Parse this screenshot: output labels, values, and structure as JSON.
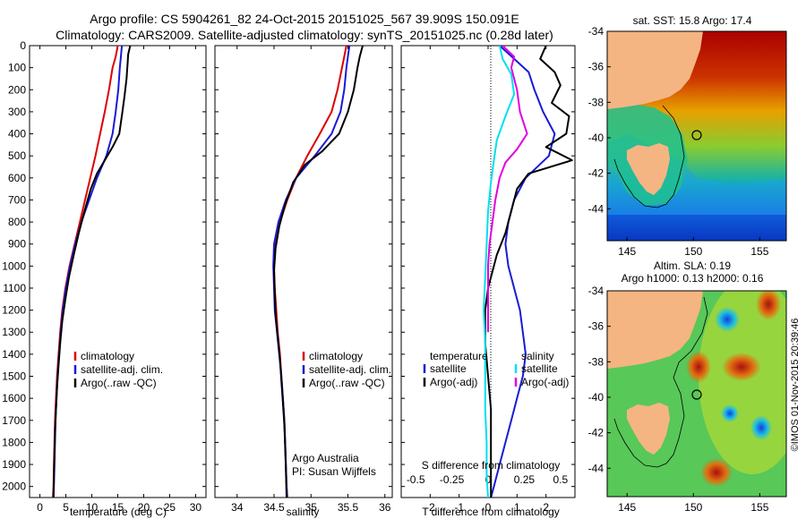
{
  "title_line1": "Argo profile: CS 5904261_82 24-Oct-2015 20151025_567 39.909S 150.091E",
  "title_line2": "Climatology: CARS2009. Satellite-adjusted climatology: synTS_20151025.nc (0.28d later)",
  "map1_title": "sat. SST: 15.8 Argo: 17.4",
  "map2_title1": "Altim. SLA: 0.19",
  "map2_title2": "Argo h1000: 0.13 h2000: 0.16",
  "credit": "©IMOS 01-Nov-2015 20:39:46",
  "agency": "Argo Australia",
  "pi": "PI: Susan Wijffels",
  "colors": {
    "climatology": "#dd0000",
    "satellite": "#1a1ad6",
    "argo": "#000000",
    "salinity_argo": "#e000e0",
    "salinity_sat": "#00e0ee"
  },
  "chart_data": [
    {
      "type": "line",
      "xlabel": "temperature (deg C)",
      "ylabel": "",
      "xlim": [
        -2,
        32
      ],
      "ylim": [
        2050,
        0
      ],
      "xticks": [
        "0",
        "5",
        "10",
        "15",
        "20",
        "25",
        "30"
      ],
      "yticks": [
        "0",
        "100",
        "200",
        "300",
        "400",
        "500",
        "600",
        "700",
        "800",
        "900",
        "1000",
        "1100",
        "1200",
        "1300",
        "1400",
        "1500",
        "1600",
        "1700",
        "1800",
        "1900",
        "2000"
      ],
      "legend": [
        "climatology",
        "satellite-adj. clim.",
        "Argo(..raw -QC)"
      ],
      "series": [
        {
          "name": "climatology",
          "color": "climatology",
          "points": [
            [
              15.0,
              0
            ],
            [
              14.6,
              50
            ],
            [
              14.0,
              100
            ],
            [
              13.3,
              200
            ],
            [
              12.5,
              300
            ],
            [
              11.6,
              400
            ],
            [
              10.7,
              500
            ],
            [
              9.7,
              600
            ],
            [
              8.7,
              700
            ],
            [
              7.7,
              800
            ],
            [
              6.7,
              900
            ],
            [
              5.7,
              1000
            ],
            [
              4.9,
              1100
            ],
            [
              4.3,
              1200
            ],
            [
              3.9,
              1300
            ],
            [
              3.6,
              1400
            ],
            [
              3.3,
              1500
            ],
            [
              3.1,
              1600
            ],
            [
              2.9,
              1700
            ],
            [
              2.8,
              1800
            ],
            [
              2.7,
              1900
            ],
            [
              2.6,
              2000
            ],
            [
              2.5,
              2050
            ]
          ]
        },
        {
          "name": "satellite-adj. clim.",
          "color": "satellite",
          "points": [
            [
              15.8,
              0
            ],
            [
              15.6,
              50
            ],
            [
              15.4,
              100
            ],
            [
              15.1,
              200
            ],
            [
              14.6,
              300
            ],
            [
              14.0,
              400
            ],
            [
              12.8,
              500
            ],
            [
              11.0,
              600
            ],
            [
              9.5,
              700
            ],
            [
              8.0,
              800
            ],
            [
              6.8,
              900
            ],
            [
              5.8,
              1000
            ],
            [
              5.0,
              1100
            ],
            [
              4.4,
              1200
            ],
            [
              4.0,
              1300
            ],
            [
              3.7,
              1400
            ],
            [
              3.4,
              1500
            ],
            [
              3.2,
              1600
            ],
            [
              3.0,
              1700
            ],
            [
              2.9,
              1800
            ],
            [
              2.8,
              1900
            ],
            [
              2.7,
              2000
            ],
            [
              2.6,
              2050
            ]
          ]
        },
        {
          "name": "Argo(..raw -QC)",
          "color": "argo",
          "points": [
            [
              17.4,
              0
            ],
            [
              17.0,
              40
            ],
            [
              16.9,
              80
            ],
            [
              16.7,
              150
            ],
            [
              16.3,
              230
            ],
            [
              15.9,
              300
            ],
            [
              15.3,
              400
            ],
            [
              14.0,
              460
            ],
            [
              12.5,
              520
            ],
            [
              11.0,
              580
            ],
            [
              9.8,
              650
            ],
            [
              8.6,
              750
            ],
            [
              7.5,
              850
            ],
            [
              6.5,
              950
            ],
            [
              5.6,
              1050
            ],
            [
              4.9,
              1150
            ],
            [
              4.3,
              1250
            ],
            [
              3.9,
              1350
            ],
            [
              3.6,
              1450
            ],
            [
              3.3,
              1550
            ],
            [
              3.1,
              1650
            ],
            [
              2.9,
              1750
            ],
            [
              2.8,
              1850
            ],
            [
              2.7,
              1950
            ],
            [
              2.6,
              2050
            ]
          ]
        }
      ]
    },
    {
      "type": "line",
      "xlabel": "salinity",
      "ylabel": "",
      "xlim": [
        33.7,
        36.1
      ],
      "ylim": [
        2050,
        0
      ],
      "xticks": [
        "34",
        "34.5",
        "35",
        "35.5",
        "36"
      ],
      "legend": [
        "climatology",
        "satellite-adj. clim.",
        "Argo(..raw -QC)"
      ],
      "series": [
        {
          "name": "climatology",
          "color": "climatology",
          "points": [
            [
              35.48,
              0
            ],
            [
              35.45,
              50
            ],
            [
              35.42,
              100
            ],
            [
              35.36,
              200
            ],
            [
              35.28,
              300
            ],
            [
              35.12,
              400
            ],
            [
              34.95,
              500
            ],
            [
              34.8,
              600
            ],
            [
              34.68,
              700
            ],
            [
              34.58,
              800
            ],
            [
              34.52,
              900
            ],
            [
              34.5,
              1000
            ],
            [
              34.51,
              1100
            ],
            [
              34.53,
              1200
            ],
            [
              34.55,
              1300
            ],
            [
              34.58,
              1400
            ],
            [
              34.6,
              1500
            ],
            [
              34.62,
              1600
            ],
            [
              34.64,
              1700
            ],
            [
              34.65,
              1800
            ],
            [
              34.66,
              1900
            ],
            [
              34.67,
              2000
            ],
            [
              34.68,
              2050
            ]
          ]
        },
        {
          "name": "satellite-adj. clim.",
          "color": "satellite",
          "points": [
            [
              35.52,
              0
            ],
            [
              35.5,
              50
            ],
            [
              35.48,
              100
            ],
            [
              35.45,
              200
            ],
            [
              35.4,
              300
            ],
            [
              35.28,
              400
            ],
            [
              35.05,
              500
            ],
            [
              34.8,
              600
            ],
            [
              34.66,
              700
            ],
            [
              34.56,
              800
            ],
            [
              34.5,
              900
            ],
            [
              34.49,
              1000
            ],
            [
              34.5,
              1100
            ],
            [
              34.51,
              1200
            ],
            [
              34.54,
              1300
            ],
            [
              34.57,
              1400
            ],
            [
              34.6,
              1500
            ],
            [
              34.62,
              1600
            ],
            [
              34.64,
              1700
            ],
            [
              34.65,
              1800
            ],
            [
              34.66,
              1900
            ],
            [
              34.67,
              2000
            ],
            [
              34.68,
              2050
            ]
          ]
        },
        {
          "name": "Argo(..raw -QC)",
          "color": "argo",
          "points": [
            [
              35.7,
              0
            ],
            [
              35.66,
              50
            ],
            [
              35.63,
              100
            ],
            [
              35.58,
              200
            ],
            [
              35.5,
              300
            ],
            [
              35.38,
              400
            ],
            [
              35.15,
              480
            ],
            [
              34.92,
              540
            ],
            [
              34.76,
              620
            ],
            [
              34.65,
              720
            ],
            [
              34.57,
              820
            ],
            [
              34.52,
              920
            ],
            [
              34.5,
              1020
            ],
            [
              34.51,
              1120
            ],
            [
              34.52,
              1220
            ],
            [
              34.55,
              1320
            ],
            [
              34.58,
              1420
            ],
            [
              34.6,
              1520
            ],
            [
              34.62,
              1620
            ],
            [
              34.64,
              1720
            ],
            [
              34.65,
              1820
            ],
            [
              34.66,
              1920
            ],
            [
              34.67,
              2050
            ]
          ]
        }
      ]
    },
    {
      "type": "line",
      "xlabel": "T difference from climatology",
      "secondary_xlabel": "S difference from climatology",
      "xlim": [
        -3.0,
        3.0
      ],
      "ylim": [
        2050,
        0
      ],
      "xticks": [
        "-2",
        "-1",
        "0",
        "1",
        "2"
      ],
      "secondary_xticks": [
        "-0.5",
        "-0.25",
        "0",
        "0.25",
        "0.5"
      ],
      "legend_temperature": [
        "temperature",
        "satellite",
        "Argo(-adj)"
      ],
      "legend_salinity": [
        "salinity",
        "satellite",
        "Argo(-adj)"
      ],
      "series": [
        {
          "name": "satellite",
          "group": "temperature",
          "color": "satellite",
          "points": [
            [
              0.4,
              0
            ],
            [
              0.9,
              60
            ],
            [
              1.4,
              120
            ],
            [
              1.6,
              200
            ],
            [
              1.9,
              300
            ],
            [
              2.3,
              400
            ],
            [
              2.1,
              500
            ],
            [
              1.3,
              600
            ],
            [
              0.9,
              700
            ],
            [
              0.7,
              800
            ],
            [
              0.6,
              900
            ],
            [
              0.7,
              1000
            ],
            [
              0.9,
              1100
            ],
            [
              1.1,
              1200
            ],
            [
              1.2,
              1300
            ],
            [
              1.3,
              1400
            ],
            [
              1.2,
              1500
            ],
            [
              1.0,
              1600
            ],
            [
              0.8,
              1700
            ],
            [
              0.6,
              1800
            ],
            [
              0.4,
              1900
            ],
            [
              0.2,
              2000
            ],
            [
              0.1,
              2050
            ]
          ]
        },
        {
          "name": "Argo(-adj)",
          "group": "temperature",
          "color": "argo",
          "points": [
            [
              2.0,
              0
            ],
            [
              1.8,
              60
            ],
            [
              2.3,
              120
            ],
            [
              2.5,
              180
            ],
            [
              2.2,
              260
            ],
            [
              2.8,
              320
            ],
            [
              2.7,
              400
            ],
            [
              2.0,
              460
            ],
            [
              2.9,
              520
            ],
            [
              1.4,
              580
            ],
            [
              1.0,
              650
            ],
            [
              0.8,
              750
            ],
            [
              0.6,
              850
            ],
            [
              0.3,
              950
            ],
            [
              0.1,
              1050
            ],
            [
              0.0,
              1100
            ],
            [
              -0.1,
              1200
            ],
            [
              -0.1,
              1350
            ],
            [
              0.0,
              1500
            ],
            [
              0.1,
              1650
            ],
            [
              0.1,
              1800
            ],
            [
              0.1,
              1950
            ],
            [
              0.1,
              2050
            ]
          ]
        },
        {
          "name": "satellite",
          "group": "salinity",
          "color": "salinity_sat",
          "points": [
            [
              0.08,
              0
            ],
            [
              0.1,
              60
            ],
            [
              0.16,
              130
            ],
            [
              0.18,
              220
            ],
            [
              0.12,
              320
            ],
            [
              0.06,
              430
            ],
            [
              0.04,
              520
            ],
            [
              0.02,
              620
            ],
            [
              0.0,
              750
            ],
            [
              -0.01,
              900
            ],
            [
              -0.02,
              1050
            ],
            [
              -0.03,
              1200
            ],
            [
              -0.02,
              1350
            ],
            [
              -0.02,
              1500
            ],
            [
              -0.02,
              1650
            ],
            [
              -0.01,
              1800
            ],
            [
              -0.01,
              1950
            ],
            [
              0.0,
              2050
            ]
          ]
        },
        {
          "name": "Argo(-adj)",
          "group": "salinity",
          "color": "salinity_argo",
          "points": [
            [
              0.1,
              0
            ],
            [
              0.18,
              50
            ],
            [
              0.16,
              100
            ],
            [
              0.2,
              200
            ],
            [
              0.22,
              300
            ],
            [
              0.27,
              400
            ],
            [
              0.2,
              470
            ],
            [
              0.12,
              530
            ],
            [
              0.08,
              600
            ],
            [
              0.05,
              700
            ],
            [
              0.03,
              800
            ],
            [
              0.01,
              900
            ],
            [
              0.0,
              1000
            ],
            [
              0.0,
              1100
            ],
            [
              0.0,
              1200
            ],
            [
              0.0,
              1300
            ]
          ]
        }
      ]
    }
  ],
  "maps": [
    {
      "name": "sst-map",
      "xticks": [
        "145",
        "150",
        "155"
      ],
      "yticks": [
        "-34",
        "-36",
        "-38",
        "-40",
        "-42",
        "-44"
      ]
    },
    {
      "name": "sla-map",
      "xticks": [
        "145",
        "150",
        "155"
      ],
      "yticks": [
        "-34",
        "-36",
        "-38",
        "-40",
        "-42",
        "-44"
      ]
    }
  ]
}
